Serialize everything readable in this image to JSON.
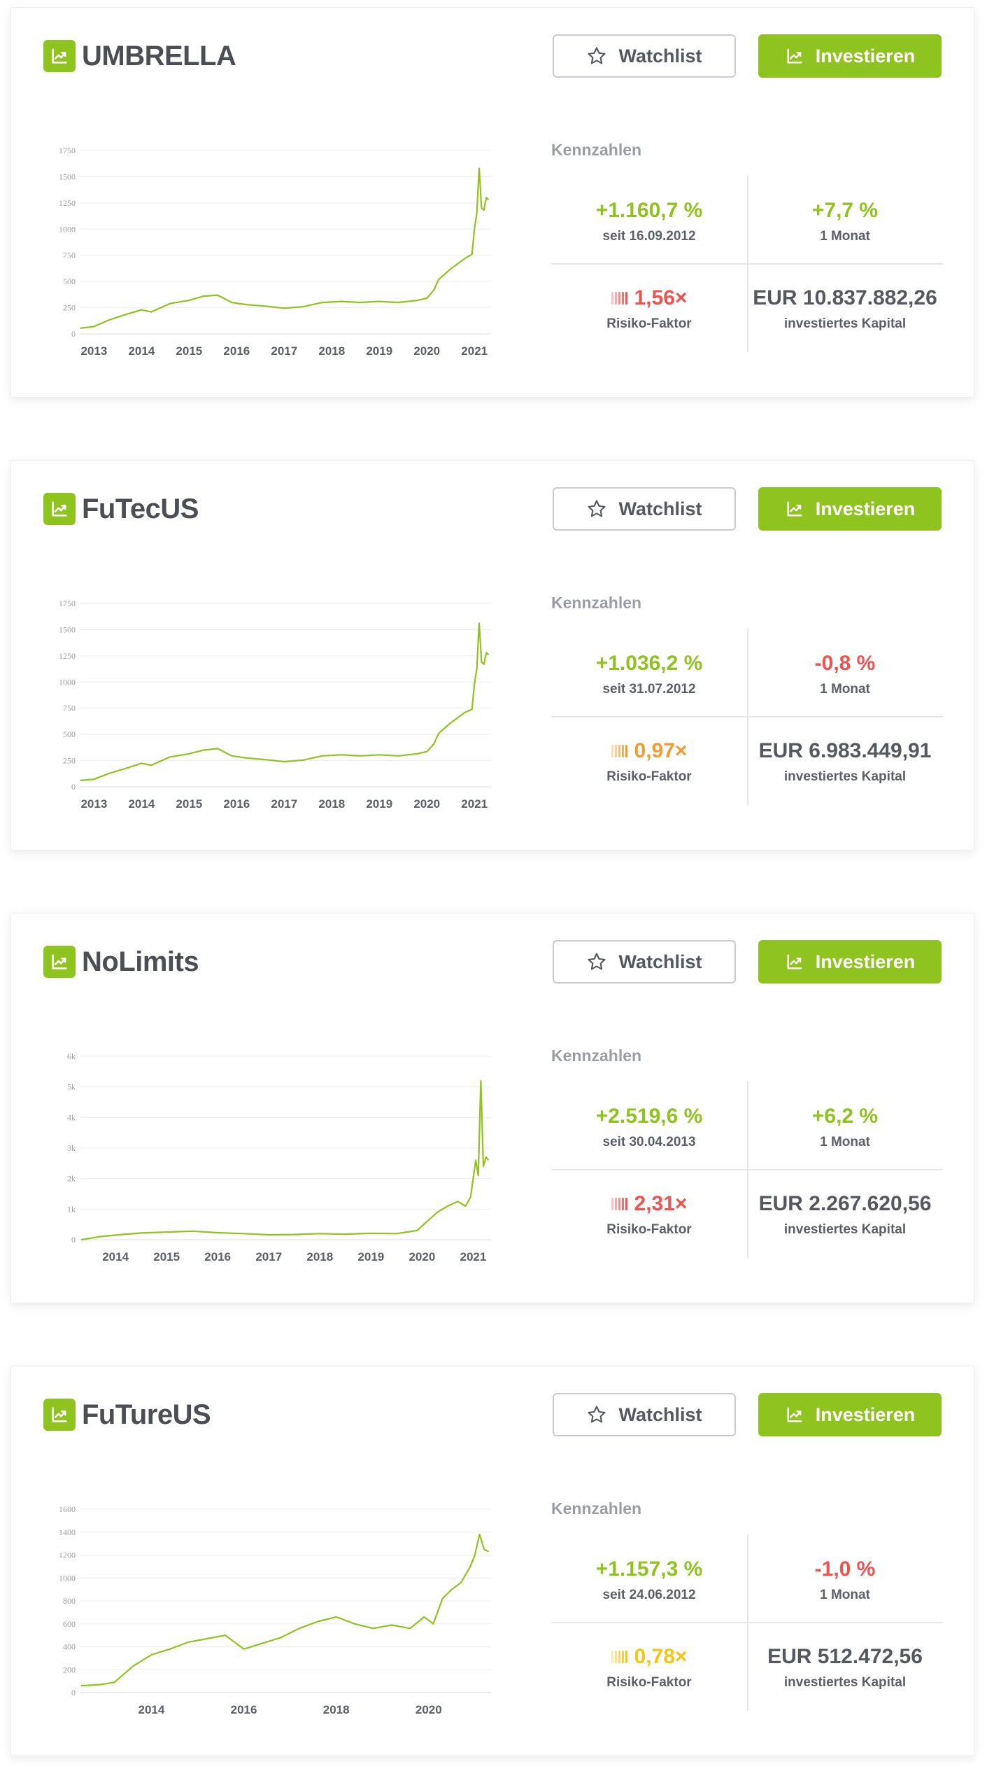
{
  "colors": {
    "accent": "#8fc31f",
    "positive": "#8fc31f",
    "negative": "#ef5350",
    "risk_high": "#ef5350",
    "risk_mid": "#f39c34",
    "risk_low": "#f5c518"
  },
  "labels": {
    "watchlist": "Watchlist",
    "invest": "Investieren",
    "kennzahlen": "Kennzahlen",
    "one_month": "1 Monat",
    "risk_factor": "Risiko-Faktor",
    "invested_capital": "investiertes Kapital"
  },
  "icons": {
    "logo": "trending-up-icon",
    "watchlist": "star-outline-icon",
    "invest": "trending-up-icon"
  },
  "funds": [
    {
      "name": "UMBRELLA",
      "performance": "+1.160,7 %",
      "since": "seit 16.09.2012",
      "month": "+7,7 %",
      "month_sign": "positive",
      "risk": "1,56×",
      "risk_level": "high",
      "capital": "EUR 10.837.882,26",
      "chart_data": {
        "type": "line",
        "xlabel": "",
        "ylabel": "",
        "x_ticks": [
          "2013",
          "2014",
          "2015",
          "2016",
          "2017",
          "2018",
          "2019",
          "2020",
          "2021"
        ],
        "y_ticks": [
          "0",
          "250",
          "500",
          "750",
          "1000",
          "1250",
          "1500",
          "1750"
        ],
        "ylim": [
          0,
          1750
        ],
        "xlim": [
          2012.7,
          2021.35
        ],
        "grid": true,
        "x": [
          2012.71,
          2013.0,
          2013.3,
          2013.7,
          2014.0,
          2014.2,
          2014.6,
          2015.0,
          2015.3,
          2015.6,
          2015.9,
          2016.2,
          2016.6,
          2017.0,
          2017.4,
          2017.8,
          2018.2,
          2018.6,
          2019.0,
          2019.4,
          2019.8,
          2020.0,
          2020.15,
          2020.25,
          2020.5,
          2020.8,
          2020.95,
          2021.0,
          2021.05,
          2021.1,
          2021.15,
          2021.2,
          2021.25,
          2021.3
        ],
        "y": [
          55,
          70,
          130,
          190,
          230,
          210,
          290,
          320,
          360,
          370,
          300,
          280,
          265,
          245,
          260,
          300,
          310,
          300,
          310,
          300,
          320,
          340,
          420,
          520,
          620,
          720,
          760,
          1000,
          1150,
          1580,
          1200,
          1180,
          1300,
          1280
        ]
      }
    },
    {
      "name": "FuTecUS",
      "performance": "+1.036,2 %",
      "since": "seit 31.07.2012",
      "month": "-0,8 %",
      "month_sign": "negative",
      "risk": "0,97×",
      "risk_level": "mid",
      "capital": "EUR 6.983.449,91",
      "chart_data": {
        "type": "line",
        "xlabel": "",
        "ylabel": "",
        "x_ticks": [
          "2013",
          "2014",
          "2015",
          "2016",
          "2017",
          "2018",
          "2019",
          "2020",
          "2021"
        ],
        "y_ticks": [
          "0",
          "250",
          "500",
          "750",
          "1000",
          "1250",
          "1500",
          "1750"
        ],
        "ylim": [
          0,
          1750
        ],
        "xlim": [
          2012.7,
          2021.35
        ],
        "grid": true,
        "x": [
          2012.71,
          2013.0,
          2013.3,
          2013.7,
          2014.0,
          2014.2,
          2014.6,
          2015.0,
          2015.3,
          2015.6,
          2015.9,
          2016.2,
          2016.6,
          2017.0,
          2017.4,
          2017.8,
          2018.2,
          2018.6,
          2019.0,
          2019.4,
          2019.8,
          2020.0,
          2020.15,
          2020.25,
          2020.5,
          2020.8,
          2020.95,
          2021.0,
          2021.05,
          2021.1,
          2021.15,
          2021.2,
          2021.25,
          2021.3
        ],
        "y": [
          60,
          72,
          125,
          180,
          225,
          205,
          285,
          315,
          350,
          365,
          295,
          275,
          260,
          240,
          255,
          295,
          305,
          295,
          305,
          295,
          315,
          335,
          410,
          510,
          610,
          710,
          740,
          980,
          1120,
          1560,
          1190,
          1170,
          1280,
          1260
        ]
      }
    },
    {
      "name": "NoLimits",
      "performance": "+2.519,6 %",
      "since": "seit 30.04.2013",
      "month": "+6,2 %",
      "month_sign": "positive",
      "risk": "2,31×",
      "risk_level": "high",
      "capital": "EUR 2.267.620,56",
      "chart_data": {
        "type": "line",
        "xlabel": "",
        "ylabel": "",
        "x_ticks": [
          "2014",
          "2015",
          "2016",
          "2017",
          "2018",
          "2019",
          "2020",
          "2021"
        ],
        "y_ticks": [
          "0",
          "1k",
          "2k",
          "3k",
          "4k",
          "5k",
          "6k"
        ],
        "ylim": [
          0,
          6000
        ],
        "xlim": [
          2013.3,
          2021.35
        ],
        "grid": true,
        "x": [
          2013.33,
          2013.7,
          2014.0,
          2014.5,
          2015.0,
          2015.5,
          2016.0,
          2016.5,
          2017.0,
          2017.5,
          2018.0,
          2018.5,
          2019.0,
          2019.5,
          2019.9,
          2020.1,
          2020.3,
          2020.5,
          2020.7,
          2020.85,
          2020.95,
          2021.0,
          2021.05,
          2021.1,
          2021.15,
          2021.2,
          2021.25,
          2021.3
        ],
        "y": [
          0,
          100,
          150,
          220,
          250,
          280,
          230,
          200,
          160,
          170,
          200,
          180,
          210,
          200,
          300,
          600,
          900,
          1100,
          1250,
          1100,
          1400,
          2000,
          2600,
          2100,
          5200,
          2400,
          2700,
          2600
        ]
      }
    },
    {
      "name": "FuTureUS",
      "performance": "+1.157,3 %",
      "since": "seit 24.06.2012",
      "month": "-1,0 %",
      "month_sign": "negative",
      "risk": "0,78×",
      "risk_level": "low",
      "capital": "EUR 512.472,56",
      "chart_data": {
        "type": "line",
        "xlabel": "",
        "ylabel": "",
        "x_ticks": [
          "2014",
          "2016",
          "2018",
          "2020"
        ],
        "y_ticks": [
          "0",
          "200",
          "400",
          "600",
          "800",
          "1000",
          "1200",
          "1400",
          "1600"
        ],
        "ylim": [
          0,
          1600
        ],
        "xlim": [
          2012.45,
          2021.35
        ],
        "grid": true,
        "x": [
          2012.48,
          2012.9,
          2013.2,
          2013.6,
          2014.0,
          2014.4,
          2014.8,
          2015.2,
          2015.6,
          2016.0,
          2016.4,
          2016.8,
          2017.2,
          2017.6,
          2018.0,
          2018.4,
          2018.8,
          2019.2,
          2019.6,
          2019.9,
          2020.1,
          2020.3,
          2020.5,
          2020.7,
          2020.9,
          2021.0,
          2021.1,
          2021.2,
          2021.3
        ],
        "y": [
          60,
          70,
          90,
          230,
          330,
          380,
          440,
          470,
          500,
          380,
          430,
          480,
          560,
          620,
          660,
          600,
          560,
          590,
          560,
          660,
          600,
          820,
          900,
          960,
          1100,
          1200,
          1380,
          1250,
          1230
        ]
      }
    }
  ]
}
